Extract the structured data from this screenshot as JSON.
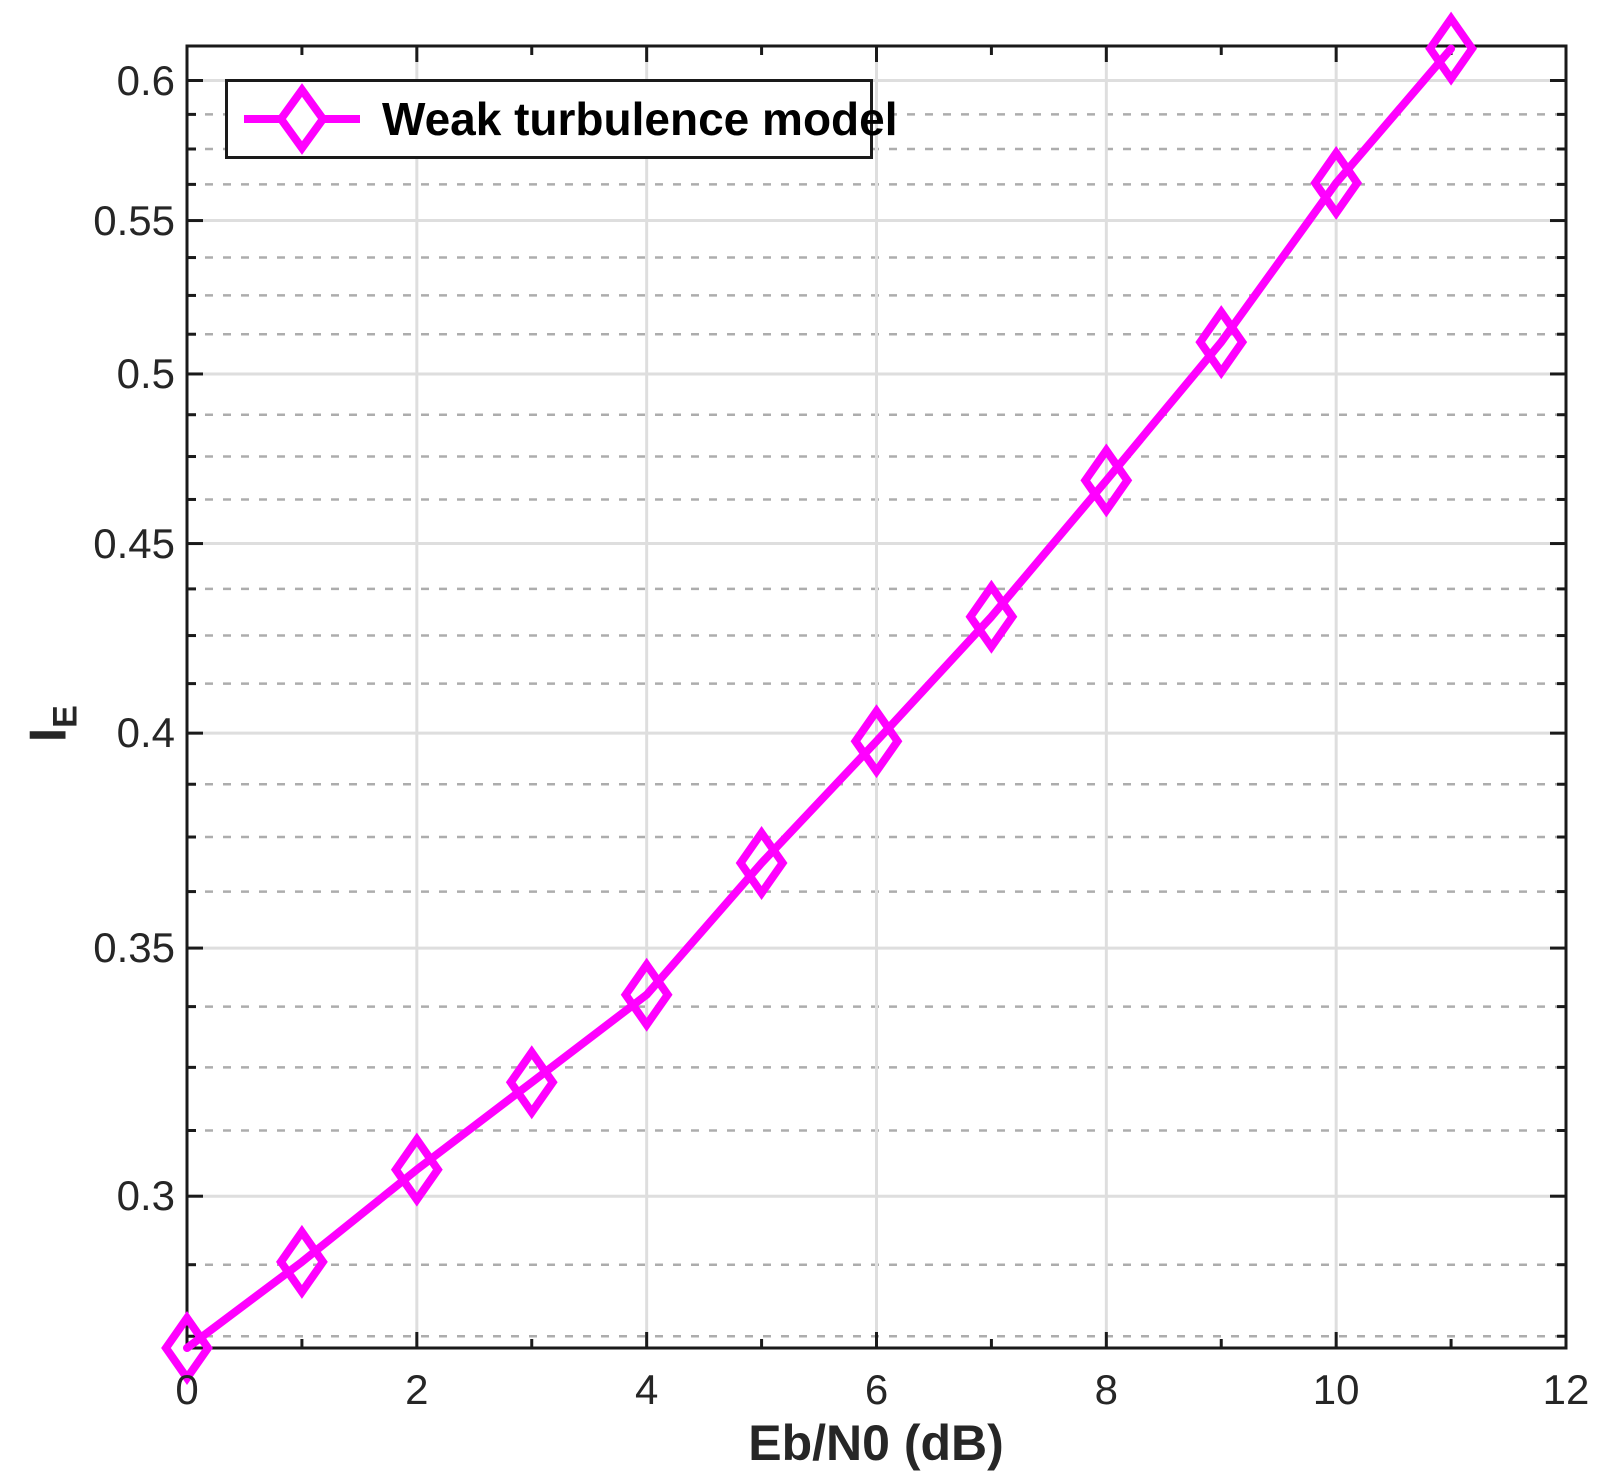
{
  "figure": {
    "background": "#FFFFFF",
    "kind": "matlab-style line plot"
  },
  "chart_data": {
    "type": "line",
    "title": "",
    "xlabel": "Eb/N0 (dB)",
    "ylabel": {
      "base": "I",
      "sub": "E"
    },
    "legend": {
      "entries": [
        {
          "label": "Weak turbulence model",
          "color": "#FF00FF",
          "marker": "diamond"
        }
      ],
      "position": "northwest"
    },
    "series": [
      {
        "name": "Weak turbulence model",
        "x": [
          0,
          1,
          2,
          3,
          4,
          5,
          6,
          7,
          8,
          9,
          10,
          11
        ],
        "y": [
          0.273,
          0.288,
          0.305,
          0.322,
          0.34,
          0.369,
          0.398,
          0.43,
          0.468,
          0.51,
          0.563,
          0.612
        ]
      }
    ],
    "xlim": [
      0,
      12
    ],
    "ylim": [
      0.273,
      0.613
    ],
    "yscale": "log",
    "xticks": [
      0,
      2,
      4,
      6,
      8,
      10,
      12
    ],
    "xtick_labels": [
      "0",
      "2",
      "4",
      "6",
      "8",
      "10",
      "12"
    ],
    "xminorticks": [
      1,
      3,
      5,
      7,
      9,
      11
    ],
    "yticks": [
      0.3,
      0.35,
      0.4,
      0.45,
      0.5,
      0.55,
      0.6
    ],
    "ytick_labels": [
      "0.3",
      "0.35",
      "0.4",
      "0.45",
      "0.5",
      "0.55",
      "0.6"
    ],
    "yminor_step": 0.0125,
    "yminor_range": [
      0.275,
      0.5875
    ],
    "grid": {
      "major": true,
      "minor_y_dashed": true,
      "box": true,
      "ticks_direction": "in"
    },
    "style": {
      "line_color": "#FF00FF",
      "line_width": 8,
      "marker": "diamond",
      "marker_rx": 21,
      "marker_ry": 30,
      "marker_stroke": 8,
      "major_grid_color": "#DEDEDE",
      "minor_grid_color": "#ADADAD",
      "axis_color": "#1A1A1A",
      "text_color": "#262626"
    }
  }
}
